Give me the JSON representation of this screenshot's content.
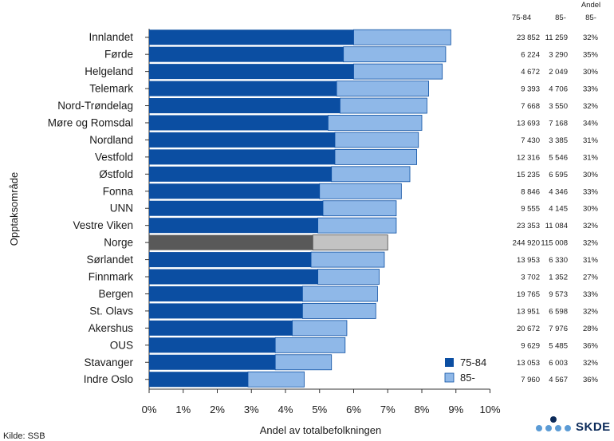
{
  "chart_data": {
    "type": "bar",
    "orientation": "horizontal",
    "stacked": true,
    "xlabel": "Andel av totalbefolkningen",
    "ylabel": "Opptaksområde",
    "xlim": [
      0,
      10
    ],
    "xticks": [
      "0%",
      "1%",
      "2%",
      "3%",
      "4%",
      "5%",
      "6%",
      "7%",
      "8%",
      "9%",
      "10%"
    ],
    "legend_position": "bottom-right",
    "categories": [
      "Innlandet",
      "Førde",
      "Helgeland",
      "Telemark",
      "Nord-Trøndelag",
      "Møre og Romsdal",
      "Nordland",
      "Vestfold",
      "Østfold",
      "Fonna",
      "UNN",
      "Vestre Viken",
      "Norge",
      "Sørlandet",
      "Finnmark",
      "Bergen",
      "St. Olavs",
      "Akershus",
      "OUS",
      "Stavanger",
      "Indre Oslo"
    ],
    "highlight_category": "Norge",
    "series": [
      {
        "name": "75-84",
        "color": "#0b4ea2",
        "highlight_color": "#595959",
        "values": [
          6.0,
          5.7,
          6.0,
          5.5,
          5.6,
          5.25,
          5.45,
          5.45,
          5.35,
          5.0,
          5.1,
          4.95,
          4.8,
          4.75,
          4.95,
          4.5,
          4.5,
          4.2,
          3.7,
          3.7,
          2.9
        ]
      },
      {
        "name": "85-",
        "color": "#8fb8e8",
        "highlight_color": "#c3c3c3",
        "values": [
          2.85,
          3.0,
          2.6,
          2.7,
          2.55,
          2.75,
          2.45,
          2.4,
          2.3,
          2.4,
          2.15,
          2.3,
          2.2,
          2.15,
          1.8,
          2.2,
          2.15,
          1.6,
          2.05,
          1.65,
          1.65
        ]
      }
    ],
    "table": {
      "headers": {
        "h1": "75-84",
        "h2": "85-",
        "h3_line1": "Andel",
        "h3_line2": "85-"
      },
      "rows": [
        [
          "23 852",
          "11 259",
          "32%"
        ],
        [
          "6 224",
          "3 290",
          "35%"
        ],
        [
          "4 672",
          "2 049",
          "30%"
        ],
        [
          "9 393",
          "4 706",
          "33%"
        ],
        [
          "7 668",
          "3 550",
          "32%"
        ],
        [
          "13 693",
          "7 168",
          "34%"
        ],
        [
          "7 430",
          "3 385",
          "31%"
        ],
        [
          "12 316",
          "5 546",
          "31%"
        ],
        [
          "15 235",
          "6 595",
          "30%"
        ],
        [
          "8 846",
          "4 346",
          "33%"
        ],
        [
          "9 555",
          "4 145",
          "30%"
        ],
        [
          "23 353",
          "11 084",
          "32%"
        ],
        [
          "244 920",
          "115 008",
          "32%"
        ],
        [
          "13 953",
          "6 330",
          "31%"
        ],
        [
          "3 702",
          "1 352",
          "27%"
        ],
        [
          "19 765",
          "9 573",
          "33%"
        ],
        [
          "13 951",
          "6 598",
          "32%"
        ],
        [
          "20 672",
          "7 976",
          "28%"
        ],
        [
          "9 629",
          "5 485",
          "36%"
        ],
        [
          "13 053",
          "6 003",
          "32%"
        ],
        [
          "7 960",
          "4 567",
          "36%"
        ]
      ]
    }
  },
  "source": "Kilde: SSB",
  "logo": {
    "text": "SKDE",
    "colors": [
      "#0b2a59",
      "#5b9bd5"
    ]
  }
}
